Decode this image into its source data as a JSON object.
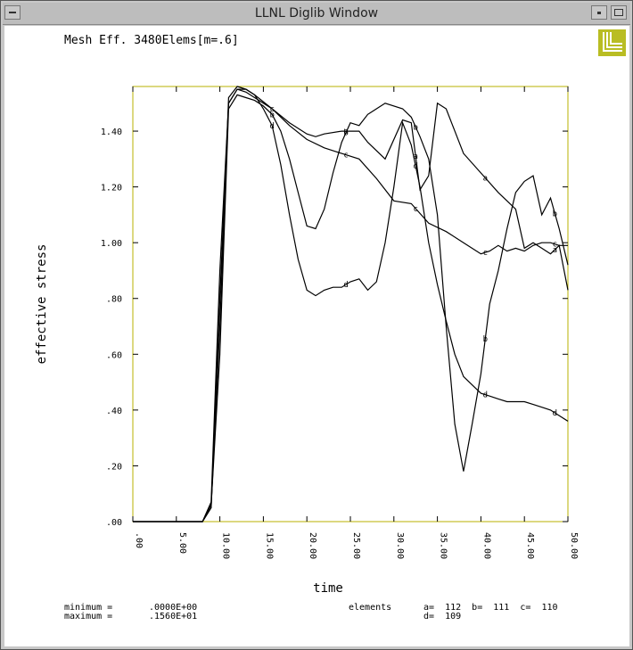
{
  "window": {
    "title": "LLNL Diglib Window",
    "logo_icon": "llnl-logo-icon"
  },
  "chart_data": {
    "type": "line",
    "title": "Mesh Eff. 3480Elems[m=.6]",
    "xlabel": "time",
    "ylabel": "effective stress",
    "xlim": [
      0,
      50
    ],
    "ylim": [
      0,
      1.56
    ],
    "x_ticks": [
      ".00",
      "5.00",
      "10.00",
      "15.00",
      "20.00",
      "25.00",
      "30.00",
      "35.00",
      "40.00",
      "45.00",
      "50.00"
    ],
    "x_tick_values": [
      0,
      5,
      10,
      15,
      20,
      25,
      30,
      35,
      40,
      45,
      50
    ],
    "y_ticks": [
      ".00",
      ".20",
      ".40",
      ".60",
      ".80",
      "1.00",
      "1.20",
      "1.40"
    ],
    "y_tick_values": [
      0,
      0.2,
      0.4,
      0.6,
      0.8,
      1.0,
      1.2,
      1.4
    ],
    "frame_color": "#b8b000",
    "line_color": "#000000",
    "series": [
      {
        "name": "a",
        "points": [
          [
            0,
            0
          ],
          [
            8,
            0
          ],
          [
            9,
            0.05
          ],
          [
            10,
            0.8
          ],
          [
            11,
            1.5
          ],
          [
            12,
            1.55
          ],
          [
            13,
            1.54
          ],
          [
            14,
            1.52
          ],
          [
            16,
            1.48
          ],
          [
            18,
            1.43
          ],
          [
            20,
            1.39
          ],
          [
            21,
            1.38
          ],
          [
            22,
            1.39
          ],
          [
            24,
            1.4
          ],
          [
            26,
            1.4
          ],
          [
            27,
            1.36
          ],
          [
            29,
            1.3
          ],
          [
            31,
            1.44
          ],
          [
            32,
            1.43
          ],
          [
            33,
            1.19
          ],
          [
            34,
            1.24
          ],
          [
            35,
            1.5
          ],
          [
            36,
            1.48
          ],
          [
            38,
            1.32
          ],
          [
            40,
            1.25
          ],
          [
            42,
            1.18
          ],
          [
            44,
            1.12
          ],
          [
            45,
            0.98
          ],
          [
            46,
            1.0
          ],
          [
            47,
            0.98
          ],
          [
            48,
            0.96
          ],
          [
            49,
            0.99
          ],
          [
            50,
            0.83
          ]
        ],
        "marker_x": [
          24.5,
          32.5,
          40.5,
          48.5
        ]
      },
      {
        "name": "b",
        "points": [
          [
            0,
            0
          ],
          [
            8,
            0
          ],
          [
            9,
            0.06
          ],
          [
            10,
            0.6
          ],
          [
            11,
            1.48
          ],
          [
            12,
            1.53
          ],
          [
            13,
            1.52
          ],
          [
            14,
            1.51
          ],
          [
            15,
            1.49
          ],
          [
            16,
            1.46
          ],
          [
            17,
            1.4
          ],
          [
            18,
            1.3
          ],
          [
            19,
            1.18
          ],
          [
            20,
            1.06
          ],
          [
            21,
            1.05
          ],
          [
            22,
            1.12
          ],
          [
            23,
            1.25
          ],
          [
            24,
            1.36
          ],
          [
            25,
            1.43
          ],
          [
            26,
            1.42
          ],
          [
            27,
            1.46
          ],
          [
            28,
            1.48
          ],
          [
            29,
            1.5
          ],
          [
            31,
            1.48
          ],
          [
            32,
            1.45
          ],
          [
            33,
            1.38
          ],
          [
            34,
            1.3
          ],
          [
            35,
            1.1
          ],
          [
            36,
            0.7
          ],
          [
            37,
            0.35
          ],
          [
            38,
            0.18
          ],
          [
            39,
            0.35
          ],
          [
            40,
            0.53
          ],
          [
            41,
            0.78
          ],
          [
            42,
            0.9
          ],
          [
            43,
            1.05
          ],
          [
            44,
            1.18
          ],
          [
            45,
            1.22
          ],
          [
            46,
            1.24
          ],
          [
            47,
            1.1
          ],
          [
            48,
            1.16
          ],
          [
            49,
            1.05
          ],
          [
            50,
            0.92
          ]
        ],
        "marker_x": [
          16,
          24.5,
          32.5,
          40.5,
          48.5
        ]
      },
      {
        "name": "c",
        "points": [
          [
            0,
            0
          ],
          [
            8,
            0
          ],
          [
            9,
            0.05
          ],
          [
            10,
            0.7
          ],
          [
            11,
            1.52
          ],
          [
            12,
            1.56
          ],
          [
            13,
            1.55
          ],
          [
            14,
            1.53
          ],
          [
            16,
            1.48
          ],
          [
            18,
            1.42
          ],
          [
            20,
            1.37
          ],
          [
            22,
            1.34
          ],
          [
            24,
            1.32
          ],
          [
            26,
            1.3
          ],
          [
            28,
            1.23
          ],
          [
            30,
            1.15
          ],
          [
            32,
            1.14
          ],
          [
            34,
            1.07
          ],
          [
            36,
            1.04
          ],
          [
            38,
            1.0
          ],
          [
            40,
            0.96
          ],
          [
            41,
            0.97
          ],
          [
            42,
            0.99
          ],
          [
            43,
            0.97
          ],
          [
            44,
            0.98
          ],
          [
            45,
            0.97
          ],
          [
            46,
            0.99
          ],
          [
            47,
            1.0
          ],
          [
            48,
            1.0
          ],
          [
            49,
            0.99
          ],
          [
            50,
            0.99
          ]
        ],
        "marker_x": [
          16,
          24.5,
          32.5,
          40.5,
          48.5
        ]
      },
      {
        "name": "d",
        "points": [
          [
            0,
            0
          ],
          [
            8,
            0
          ],
          [
            9,
            0.07
          ],
          [
            10,
            0.9
          ],
          [
            11,
            1.5
          ],
          [
            12,
            1.55
          ],
          [
            13,
            1.55
          ],
          [
            14,
            1.53
          ],
          [
            15,
            1.48
          ],
          [
            16,
            1.42
          ],
          [
            17,
            1.28
          ],
          [
            18,
            1.1
          ],
          [
            19,
            0.94
          ],
          [
            20,
            0.83
          ],
          [
            21,
            0.81
          ],
          [
            22,
            0.83
          ],
          [
            23,
            0.84
          ],
          [
            24,
            0.84
          ],
          [
            25,
            0.86
          ],
          [
            26,
            0.87
          ],
          [
            27,
            0.83
          ],
          [
            28,
            0.86
          ],
          [
            29,
            1.0
          ],
          [
            30,
            1.2
          ],
          [
            31,
            1.43
          ],
          [
            32,
            1.35
          ],
          [
            33,
            1.2
          ],
          [
            34,
            1.0
          ],
          [
            35,
            0.85
          ],
          [
            36,
            0.72
          ],
          [
            37,
            0.6
          ],
          [
            38,
            0.52
          ],
          [
            39,
            0.49
          ],
          [
            40,
            0.46
          ],
          [
            41,
            0.45
          ],
          [
            42,
            0.44
          ],
          [
            43,
            0.43
          ],
          [
            44,
            0.43
          ],
          [
            45,
            0.43
          ],
          [
            46,
            0.42
          ],
          [
            47,
            0.41
          ],
          [
            48,
            0.4
          ],
          [
            49,
            0.38
          ],
          [
            50,
            0.36
          ]
        ],
        "marker_x": [
          16,
          24.5,
          32.5,
          40.5,
          48.5
        ]
      }
    ],
    "footer": {
      "minimum_label": "minimum =",
      "minimum_value": ".0000E+00",
      "maximum_label": "maximum =",
      "maximum_value": ".1560E+01",
      "elements_label": "elements",
      "elements_line1": "a=  112  b=  111  c=  110",
      "elements_line2": "d=  109"
    }
  }
}
